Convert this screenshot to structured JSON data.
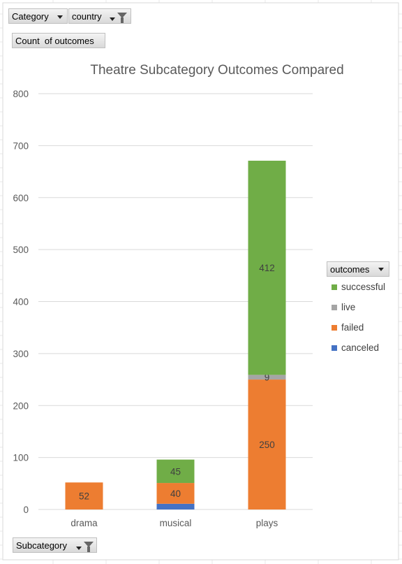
{
  "filters": {
    "category_label": "Category",
    "country_label": "country",
    "value_field_label": "Count  of outcomes",
    "axis_field_label": "Subcategory"
  },
  "legend": {
    "header_label": "outcomes"
  },
  "colors": {
    "successful": "#70ad47",
    "live": "#a5a5a5",
    "failed": "#ed7d31",
    "canceled": "#4472c4",
    "gridline": "#d9d9d9",
    "axis_text": "#595959"
  },
  "chart_data": {
    "type": "bar",
    "stacked": true,
    "title": "Theatre Subcategory Outcomes Compared",
    "xlabel": "",
    "ylabel": "",
    "categories": [
      "drama",
      "musical",
      "plays"
    ],
    "ylim": [
      0,
      800
    ],
    "yticks": [
      0,
      100,
      200,
      300,
      400,
      500,
      600,
      700,
      800
    ],
    "grid": true,
    "legend_position": "right",
    "series": [
      {
        "name": "canceled",
        "values": [
          0,
          11,
          0
        ],
        "labels": [
          "",
          "",
          ""
        ]
      },
      {
        "name": "failed",
        "values": [
          52,
          40,
          250
        ],
        "labels": [
          "52",
          "40",
          "250"
        ]
      },
      {
        "name": "live",
        "values": [
          0,
          0,
          9
        ],
        "labels": [
          "",
          "",
          "9"
        ]
      },
      {
        "name": "successful",
        "values": [
          0,
          45,
          412
        ],
        "labels": [
          "",
          "45",
          "412"
        ]
      }
    ]
  }
}
